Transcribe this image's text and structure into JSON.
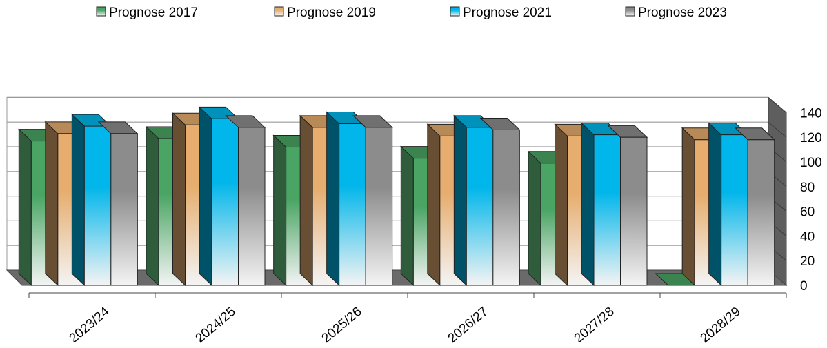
{
  "chart_data": {
    "type": "bar",
    "categories": [
      "2023/24",
      "2024/25",
      "2025/26",
      "2026/27",
      "2027/28",
      "2028/29"
    ],
    "series": [
      {
        "name": "Prognose 2017",
        "values": [
          117,
          119,
          112,
          103,
          99,
          0
        ],
        "color": "#4aa564"
      },
      {
        "name": "Prognose 2019",
        "values": [
          123,
          130,
          128,
          121,
          121,
          118
        ],
        "color": "#e6ad6e"
      },
      {
        "name": "Prognose 2021",
        "values": [
          129,
          135,
          131,
          128,
          122,
          122
        ],
        "color": "#00b6ea"
      },
      {
        "name": "Prognose 2023",
        "values": [
          123,
          128,
          128,
          126,
          120,
          118
        ],
        "color": "#8c8c8c"
      }
    ],
    "yticks": [
      0,
      20,
      40,
      60,
      80,
      100,
      120,
      140
    ],
    "ylim": [
      0,
      140
    ],
    "legend_position": "top",
    "grid": true,
    "style": "3d-clustered-bar"
  }
}
